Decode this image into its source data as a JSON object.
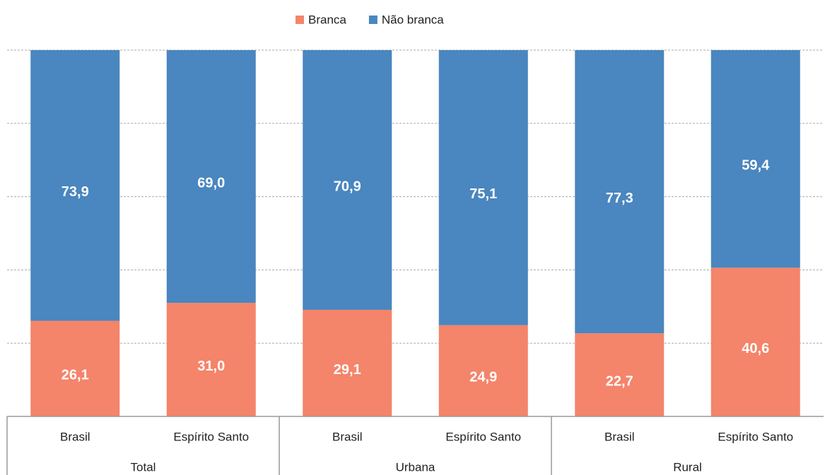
{
  "chart_data": {
    "type": "stacked_bar",
    "categories": [
      "Brasil",
      "Espírito Santo",
      "Brasil",
      "Espírito Santo",
      "Brasil",
      "Espírito Santo"
    ],
    "groups": [
      "Total",
      "Urbana",
      "Rural"
    ],
    "series": [
      {
        "name": "Branca",
        "color": "#f4846a",
        "values": [
          26.1,
          31.0,
          29.1,
          24.9,
          22.7,
          40.6
        ],
        "value_labels": [
          "26,1",
          "31,0",
          "29,1",
          "24,9",
          "22,7",
          "40,6"
        ]
      },
      {
        "name": "Não branca",
        "color": "#4a86bf",
        "values": [
          73.9,
          69.0,
          70.9,
          75.1,
          77.3,
          59.4
        ],
        "value_labels": [
          "73,9",
          "69,0",
          "70,9",
          "75,1",
          "77,3",
          "59,4"
        ]
      }
    ],
    "ylim": [
      0,
      100
    ],
    "yticks": [
      0,
      20,
      40,
      60,
      80,
      100
    ],
    "grid": true,
    "legend": "top"
  }
}
